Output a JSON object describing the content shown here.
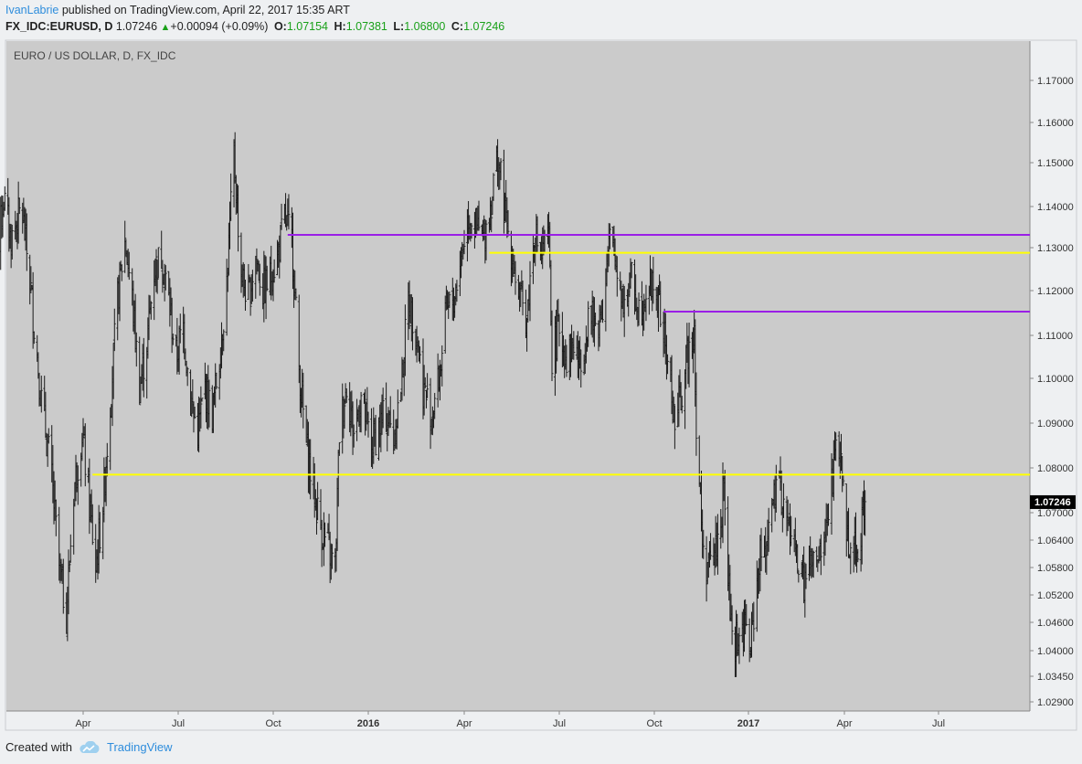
{
  "header": {
    "author": "IvanLabrie",
    "published_text": "published on TradingView.com, April 22, 2017 15:35 ART",
    "symbol": "FX_IDC:EURUSD, D",
    "last_price": "1.07246",
    "change": "+0.00094 (+0.09%)",
    "open_label": "O:",
    "open": "1.07154",
    "high_label": "H:",
    "high": "1.07381",
    "low_label": "L:",
    "low": "1.06800",
    "close_label": "C:",
    "close": "1.07246"
  },
  "footer": {
    "created_with": "Created with",
    "brand": "TradingView"
  },
  "colors": {
    "plot_bg": "#cbcbcb",
    "bars": "#1a1a1a",
    "yellow_line": "#ffff00",
    "purple_line": "#9a1fe6",
    "price_tag_bg": "#000000"
  },
  "chart_data": {
    "type": "ohlc-bar",
    "title": "EURO / US DOLLAR, D, FX_IDC",
    "price_tag": "1.07246",
    "y_ticks": [
      "1.17000",
      "1.16000",
      "1.15000",
      "1.14000",
      "1.13000",
      "1.12000",
      "1.11000",
      "1.10000",
      "1.09000",
      "1.08000",
      "1.07000",
      "1.06400",
      "1.05800",
      "1.05200",
      "1.04600",
      "1.04000",
      "1.03450",
      "1.02900"
    ],
    "x_ticks": [
      "Apr",
      "Jul",
      "Oct",
      "2016",
      "Apr",
      "Jul",
      "Oct",
      "2017",
      "Apr",
      "Jul"
    ],
    "x_ticks_bold": [
      false,
      false,
      false,
      true,
      false,
      false,
      false,
      true,
      false,
      false
    ],
    "x_dates": [
      "2015-04-01",
      "2015-07-01",
      "2015-10-01",
      "2016-01-01",
      "2016-04-01",
      "2016-07-01",
      "2016-10-01",
      "2017-01-01",
      "2017-04-01",
      "2017-07-01"
    ],
    "date_range": [
      "2015-01-02",
      "2017-04-21"
    ],
    "last_close": 1.07246,
    "horizontal_lines": [
      {
        "color": "yellow",
        "price": 1.0785,
        "from": "2015-04-10"
      },
      {
        "color": "yellow",
        "price": 1.1288,
        "from": "2016-04-25"
      },
      {
        "color": "purple",
        "price": 1.1331,
        "from": "2015-10-15"
      },
      {
        "color": "purple",
        "price": 1.1153,
        "from": "2016-10-10"
      }
    ],
    "price_path": [
      [
        "2015-01-02",
        1.145
      ],
      [
        "2015-01-08",
        1.128
      ],
      [
        "2015-01-15",
        1.142
      ],
      [
        "2015-01-22",
        1.132
      ],
      [
        "2015-02-01",
        1.14
      ],
      [
        "2015-02-10",
        1.12
      ],
      [
        "2015-02-20",
        1.095
      ],
      [
        "2015-03-01",
        1.08
      ],
      [
        "2015-03-09",
        1.058
      ],
      [
        "2015-03-16",
        1.048
      ],
      [
        "2015-03-23",
        1.075
      ],
      [
        "2015-03-31",
        1.088
      ],
      [
        "2015-04-07",
        1.072
      ],
      [
        "2015-04-13",
        1.058
      ],
      [
        "2015-04-20",
        1.072
      ],
      [
        "2015-04-27",
        1.095
      ],
      [
        "2015-05-04",
        1.118
      ],
      [
        "2015-05-11",
        1.132
      ],
      [
        "2015-05-18",
        1.118
      ],
      [
        "2015-05-25",
        1.098
      ],
      [
        "2015-06-01",
        1.108
      ],
      [
        "2015-06-08",
        1.125
      ],
      [
        "2015-06-15",
        1.128
      ],
      [
        "2015-06-22",
        1.118
      ],
      [
        "2015-06-29",
        1.105
      ],
      [
        "2015-07-06",
        1.112
      ],
      [
        "2015-07-13",
        1.095
      ],
      [
        "2015-07-20",
        1.088
      ],
      [
        "2015-07-27",
        1.098
      ],
      [
        "2015-08-03",
        1.092
      ],
      [
        "2015-08-10",
        1.105
      ],
      [
        "2015-08-17",
        1.122
      ],
      [
        "2015-08-24",
        1.152
      ],
      [
        "2015-08-31",
        1.124
      ],
      [
        "2015-09-07",
        1.118
      ],
      [
        "2015-09-14",
        1.128
      ],
      [
        "2015-09-21",
        1.12
      ],
      [
        "2015-09-28",
        1.123
      ],
      [
        "2015-10-05",
        1.128
      ],
      [
        "2015-10-12",
        1.137
      ],
      [
        "2015-10-19",
        1.132
      ],
      [
        "2015-10-26",
        1.102
      ],
      [
        "2015-11-02",
        1.085
      ],
      [
        "2015-11-09",
        1.075
      ],
      [
        "2015-11-16",
        1.067
      ],
      [
        "2015-11-23",
        1.062
      ],
      [
        "2015-11-30",
        1.058
      ],
      [
        "2015-12-04",
        1.088
      ],
      [
        "2015-12-11",
        1.099
      ],
      [
        "2015-12-18",
        1.088
      ],
      [
        "2015-12-25",
        1.096
      ],
      [
        "2016-01-04",
        1.085
      ],
      [
        "2016-01-11",
        1.089
      ],
      [
        "2016-01-18",
        1.092
      ],
      [
        "2016-01-25",
        1.087
      ],
      [
        "2016-02-01",
        1.098
      ],
      [
        "2016-02-08",
        1.118
      ],
      [
        "2016-02-15",
        1.112
      ],
      [
        "2016-02-22",
        1.098
      ],
      [
        "2016-03-01",
        1.092
      ],
      [
        "2016-03-08",
        1.1
      ],
      [
        "2016-03-15",
        1.115
      ],
      [
        "2016-03-22",
        1.118
      ],
      [
        "2016-03-29",
        1.128
      ],
      [
        "2016-04-05",
        1.138
      ],
      [
        "2016-04-12",
        1.135
      ],
      [
        "2016-04-19",
        1.132
      ],
      [
        "2016-04-26",
        1.14
      ],
      [
        "2016-05-03",
        1.152
      ],
      [
        "2016-05-10",
        1.138
      ],
      [
        "2016-05-17",
        1.128
      ],
      [
        "2016-05-24",
        1.118
      ],
      [
        "2016-05-31",
        1.114
      ],
      [
        "2016-06-07",
        1.134
      ],
      [
        "2016-06-14",
        1.128
      ],
      [
        "2016-06-21",
        1.132
      ],
      [
        "2016-06-24",
        1.105
      ],
      [
        "2016-07-01",
        1.112
      ],
      [
        "2016-07-08",
        1.105
      ],
      [
        "2016-07-15",
        1.108
      ],
      [
        "2016-07-22",
        1.102
      ],
      [
        "2016-07-29",
        1.115
      ],
      [
        "2016-08-05",
        1.112
      ],
      [
        "2016-08-12",
        1.117
      ],
      [
        "2016-08-19",
        1.132
      ],
      [
        "2016-08-26",
        1.125
      ],
      [
        "2016-09-02",
        1.117
      ],
      [
        "2016-09-09",
        1.123
      ],
      [
        "2016-09-16",
        1.116
      ],
      [
        "2016-09-23",
        1.12
      ],
      [
        "2016-09-30",
        1.122
      ],
      [
        "2016-10-07",
        1.115
      ],
      [
        "2016-10-14",
        1.104
      ],
      [
        "2016-10-21",
        1.09
      ],
      [
        "2016-10-28",
        1.097
      ],
      [
        "2016-11-04",
        1.108
      ],
      [
        "2016-11-09",
        1.112
      ],
      [
        "2016-11-11",
        1.088
      ],
      [
        "2016-11-18",
        1.06
      ],
      [
        "2016-11-25",
        1.058
      ],
      [
        "2016-12-02",
        1.064
      ],
      [
        "2016-12-08",
        1.075
      ],
      [
        "2016-12-15",
        1.044
      ],
      [
        "2016-12-22",
        1.042
      ],
      [
        "2016-12-29",
        1.045
      ],
      [
        "2017-01-03",
        1.04
      ],
      [
        "2017-01-10",
        1.058
      ],
      [
        "2017-01-17",
        1.064
      ],
      [
        "2017-01-24",
        1.072
      ],
      [
        "2017-01-31",
        1.075
      ],
      [
        "2017-02-07",
        1.067
      ],
      [
        "2017-02-14",
        1.062
      ],
      [
        "2017-02-21",
        1.054
      ],
      [
        "2017-02-28",
        1.058
      ],
      [
        "2017-03-07",
        1.058
      ],
      [
        "2017-03-14",
        1.065
      ],
      [
        "2017-03-21",
        1.078
      ],
      [
        "2017-03-27",
        1.086
      ],
      [
        "2017-04-03",
        1.066
      ],
      [
        "2017-04-10",
        1.062
      ],
      [
        "2017-04-14",
        1.063
      ],
      [
        "2017-04-21",
        1.0725
      ]
    ]
  }
}
